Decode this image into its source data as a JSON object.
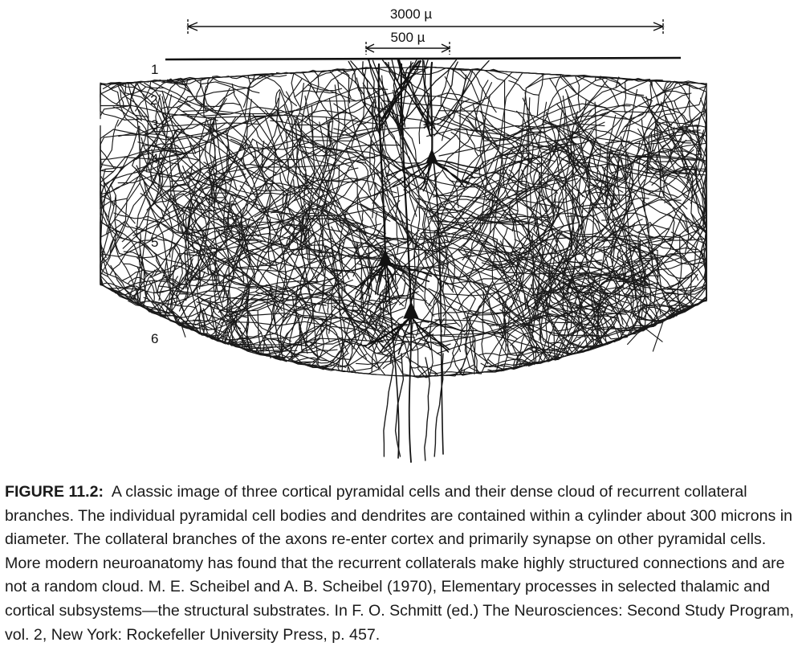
{
  "figure": {
    "scale_bar_large": "3000 µ",
    "scale_bar_small": "500 µ",
    "layers": [
      "1",
      "2",
      "3",
      "4",
      "5",
      "6"
    ]
  },
  "caption": {
    "label": "FIGURE 11.2:",
    "text": "A classic image of three cortical pyramidal cells and their dense cloud of recurrent collateral branches. The individual pyramidal cell bodies and dendrites are contained within a cylinder about 300 microns in diameter. The collateral branches of the axons re-enter cortex and primarily synapse on other pyramidal cells. More modern neuroanatomy has found that the recurrent collaterals make highly structured connections and are not a random cloud. M. E. Scheibel and A. B. Scheibel (1970), Elementary processes in selected thalamic and cortical subsystems—the structural substrates. In F. O. Schmitt (ed.) The Neurosciences: Second Study Program, vol. 2, New York: Rockefeller University Press, p. 457."
  }
}
